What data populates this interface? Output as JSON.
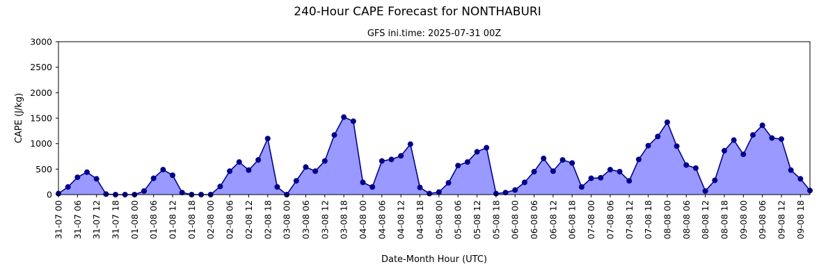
{
  "chart_data": {
    "type": "area",
    "title": "240-Hour CAPE Forecast for NONTHABURI",
    "subtitle": "GFS ini.time: 2025-07-31 00Z",
    "xlabel": "Date-Month Hour (UTC)",
    "ylabel": "CAPE (J/kg)",
    "ylim": [
      0,
      3000
    ],
    "yticks": [
      "0",
      "500",
      "1000",
      "1500",
      "2000",
      "2500",
      "3000"
    ],
    "step_hours": 3,
    "xtick_every_steps": 2,
    "xticks": [
      "31-07 00",
      "31-07 06",
      "31-07 12",
      "31-07 18",
      "01-08 00",
      "01-08 06",
      "01-08 12",
      "01-08 18",
      "02-08 00",
      "02-08 06",
      "02-08 12",
      "02-08 18",
      "03-08 00",
      "03-08 06",
      "03-08 12",
      "03-08 18",
      "04-08 00",
      "04-08 06",
      "04-08 12",
      "04-08 18",
      "05-08 00",
      "05-08 06",
      "05-08 12",
      "05-08 18",
      "06-08 00",
      "06-08 06",
      "06-08 12",
      "06-08 18",
      "07-08 00",
      "07-08 06",
      "07-08 12",
      "07-08 18",
      "08-08 00",
      "08-08 06",
      "08-08 12",
      "08-08 18",
      "09-08 00",
      "09-08 06",
      "09-08 12",
      "09-08 18"
    ],
    "values": [
      20,
      150,
      340,
      440,
      310,
      10,
      0,
      0,
      0,
      70,
      320,
      490,
      380,
      40,
      0,
      0,
      0,
      160,
      460,
      640,
      480,
      680,
      1100,
      150,
      0,
      270,
      540,
      460,
      660,
      1170,
      1520,
      1440,
      240,
      150,
      660,
      690,
      760,
      990,
      140,
      20,
      50,
      230,
      570,
      640,
      840,
      920,
      20,
      40,
      90,
      240,
      450,
      710,
      460,
      680,
      620,
      150,
      320,
      330,
      490,
      450,
      270,
      690,
      960,
      1140,
      1420,
      950,
      580,
      520,
      70,
      280,
      860,
      1070,
      790,
      1170,
      1360,
      1110,
      1090,
      480,
      310,
      80
    ],
    "grid": false,
    "legend": "none",
    "colors": {
      "line": "#00008b",
      "marker": "#00008b",
      "fill": "#9999ff",
      "axis": "#000000"
    }
  }
}
